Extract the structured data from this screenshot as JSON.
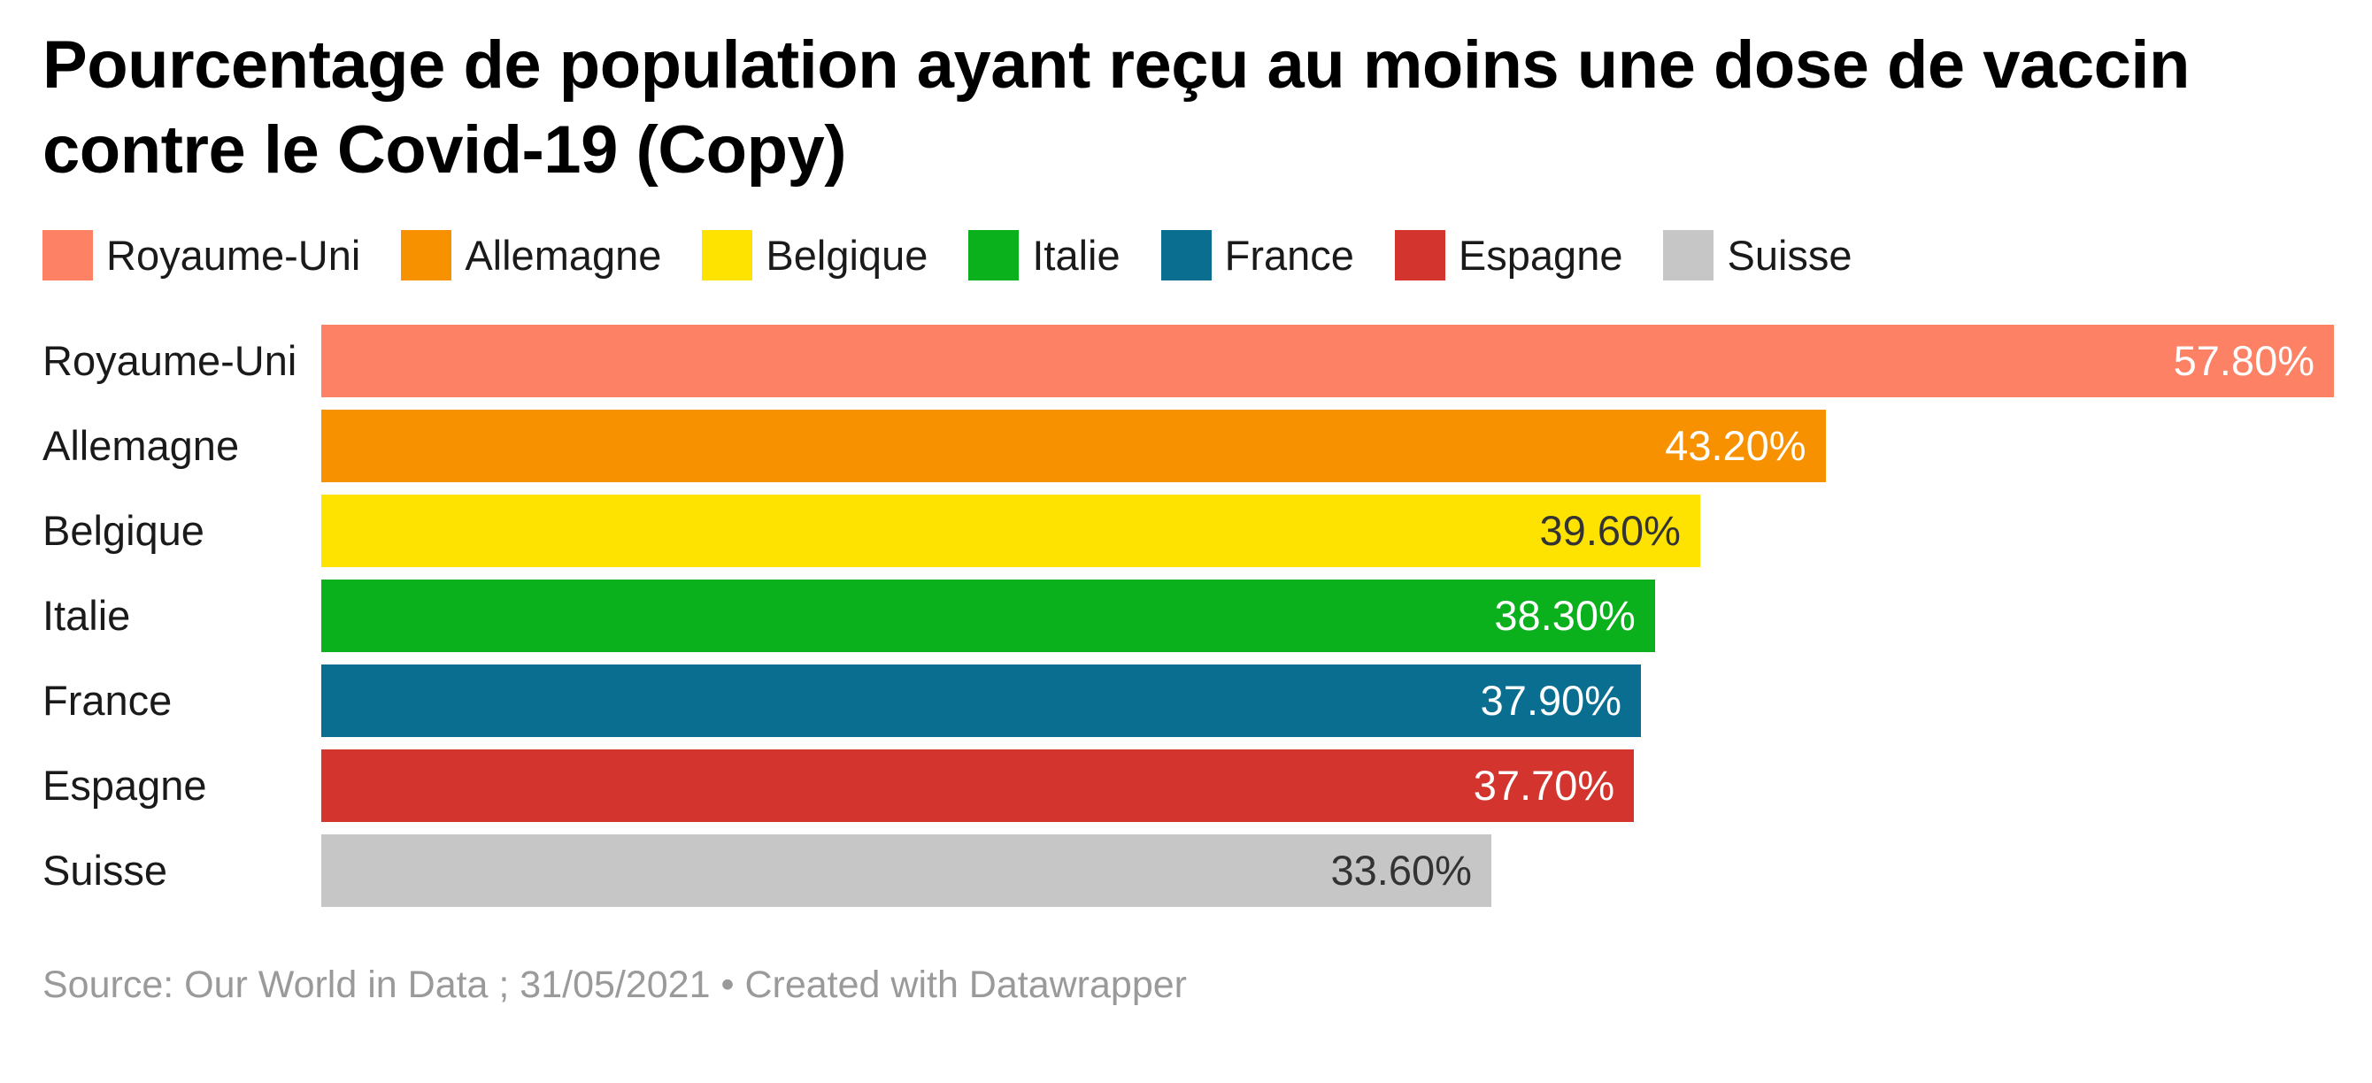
{
  "header": {
    "title": "Pourcentage de population ayant reçu au moins une dose de vaccin contre le Covid-19 (Copy)"
  },
  "legend": {
    "items": [
      {
        "label": "Royaume-Uni",
        "color": "#fd8165"
      },
      {
        "label": "Allemagne",
        "color": "#f79100"
      },
      {
        "label": "Belgique",
        "color": "#ffe300"
      },
      {
        "label": "Italie",
        "color": "#0ab11c"
      },
      {
        "label": "France",
        "color": "#0a6e91"
      },
      {
        "label": "Espagne",
        "color": "#d3352e"
      },
      {
        "label": "Suisse",
        "color": "#c6c6c6"
      }
    ]
  },
  "chart_data": {
    "type": "bar",
    "orientation": "horizontal",
    "title": "Pourcentage de population ayant reçu au moins une dose de vaccin contre le Covid-19 (Copy)",
    "categories": [
      "Royaume-Uni",
      "Allemagne",
      "Belgique",
      "Italie",
      "France",
      "Espagne",
      "Suisse"
    ],
    "values": [
      57.8,
      43.2,
      39.6,
      38.3,
      37.9,
      37.7,
      33.6
    ],
    "value_labels": [
      "57.80%",
      "43.20%",
      "39.60%",
      "38.30%",
      "37.90%",
      "37.70%",
      "33.60%"
    ],
    "bar_colors": [
      "#fd8165",
      "#f79100",
      "#ffe300",
      "#0ab11c",
      "#0a6e91",
      "#d3352e",
      "#c6c6c6"
    ],
    "value_label_colors": [
      "#ffffff",
      "#ffffff",
      "#333333",
      "#ffffff",
      "#ffffff",
      "#ffffff",
      "#333333"
    ],
    "xlim": [
      0,
      57.8
    ],
    "grid": false,
    "legend_position": "top",
    "xlabel": "",
    "ylabel": ""
  },
  "footer": {
    "text": "Source: Our World in Data ; 31/05/2021 • Created with Datawrapper"
  }
}
